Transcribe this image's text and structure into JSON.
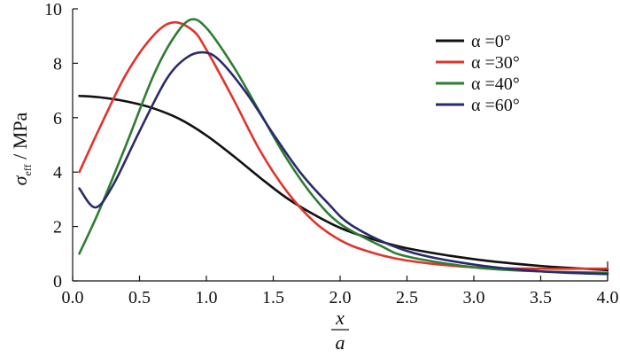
{
  "chart_data": {
    "type": "line",
    "title": "",
    "xlabel": {
      "numerator": "x",
      "denominator": "a"
    },
    "ylabel": {
      "symbol": "σ",
      "subscript": "eff",
      "unit": " / MPa"
    },
    "xlim": [
      0,
      4
    ],
    "ylim": [
      0,
      10
    ],
    "xticks": [
      "0.0",
      "0.5",
      "1.0",
      "1.5",
      "2.0",
      "2.5",
      "3.0",
      "3.5",
      "4.0"
    ],
    "yticks": [
      "0",
      "2",
      "4",
      "6",
      "8",
      "10"
    ],
    "grid": false,
    "legend_position": "top-right",
    "series": [
      {
        "name": "α =0°",
        "color": "#111111",
        "x": [
          0.05,
          0.2,
          0.4,
          0.6,
          0.8,
          1.0,
          1.2,
          1.4,
          1.6,
          1.8,
          2.0,
          2.2,
          2.5,
          3.0,
          3.5,
          4.0
        ],
        "y": [
          6.8,
          6.75,
          6.6,
          6.35,
          5.95,
          5.35,
          4.6,
          3.8,
          3.05,
          2.45,
          1.95,
          1.6,
          1.2,
          0.8,
          0.55,
          0.4
        ]
      },
      {
        "name": "α =30°",
        "color": "#e0342c",
        "x": [
          0.05,
          0.2,
          0.4,
          0.6,
          0.75,
          0.9,
          1.0,
          1.2,
          1.4,
          1.6,
          1.8,
          2.0,
          2.2,
          2.5,
          3.0,
          3.5,
          4.0
        ],
        "y": [
          4.0,
          5.6,
          7.6,
          9.0,
          9.5,
          9.2,
          8.5,
          6.7,
          4.8,
          3.3,
          2.2,
          1.5,
          1.1,
          0.75,
          0.5,
          0.45,
          0.45
        ]
      },
      {
        "name": "α =40°",
        "color": "#2e7d32",
        "x": [
          0.05,
          0.2,
          0.4,
          0.6,
          0.75,
          0.88,
          1.0,
          1.2,
          1.4,
          1.6,
          1.8,
          2.0,
          2.3,
          2.5,
          3.0,
          3.5,
          4.0
        ],
        "y": [
          1.0,
          2.6,
          5.0,
          7.5,
          8.9,
          9.6,
          9.3,
          7.9,
          6.2,
          4.5,
          3.1,
          2.1,
          1.3,
          0.9,
          0.5,
          0.35,
          0.3
        ]
      },
      {
        "name": "α =60°",
        "color": "#2a2a6e",
        "x": [
          0.05,
          0.17,
          0.3,
          0.5,
          0.7,
          0.85,
          0.98,
          1.1,
          1.3,
          1.5,
          1.7,
          1.9,
          2.1,
          2.5,
          3.0,
          3.5,
          4.0
        ],
        "y": [
          3.4,
          2.7,
          3.5,
          5.5,
          7.4,
          8.2,
          8.4,
          8.1,
          6.9,
          5.4,
          4.0,
          2.9,
          2.0,
          1.1,
          0.6,
          0.35,
          0.25
        ]
      }
    ]
  }
}
